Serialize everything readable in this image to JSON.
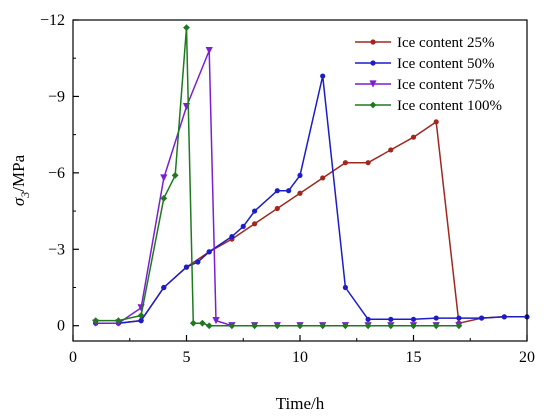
{
  "chart_data": {
    "type": "line",
    "xlabel": "Time/h",
    "ylabel": {
      "symbol": "σ",
      "subscript": "3",
      "unit": "/MPa"
    },
    "xlim": [
      0,
      20
    ],
    "ylim": [
      0.6,
      -12
    ],
    "y_axis_inverted": true,
    "xticks": [
      0,
      5,
      10,
      15,
      20
    ],
    "xtick_labels": [
      "0",
      "5",
      "10",
      "15",
      "20"
    ],
    "yticks": [
      0,
      -3,
      -6,
      -9,
      -12
    ],
    "ytick_labels": [
      "0",
      "−3",
      "−6",
      "−9",
      "−12"
    ],
    "grid": false,
    "legend_position": "top-right",
    "series": [
      {
        "name": "Ice content 25%",
        "color": "#a0281e",
        "marker": "circle",
        "x": [
          1,
          2,
          3,
          4,
          5,
          6,
          7,
          8,
          9,
          10,
          11,
          12,
          13,
          14,
          15,
          16,
          17,
          18,
          19,
          20
        ],
        "y": [
          -0.1,
          -0.1,
          -0.2,
          -1.5,
          -2.3,
          -2.9,
          -3.4,
          -4.0,
          -4.6,
          -5.2,
          -5.8,
          -6.4,
          -6.4,
          -6.9,
          -7.4,
          -8.0,
          -0.1,
          -0.3,
          -0.35,
          -0.35
        ]
      },
      {
        "name": "Ice content 50%",
        "color": "#1c1cc8",
        "marker": "circle",
        "x": [
          1,
          2,
          3,
          4,
          5,
          5.5,
          6,
          7,
          7.5,
          8,
          9,
          9.5,
          10,
          11,
          12,
          13,
          14,
          15,
          16,
          17,
          18,
          19,
          20
        ],
        "y": [
          -0.1,
          -0.1,
          -0.2,
          -1.5,
          -2.3,
          -2.5,
          -2.9,
          -3.5,
          -3.9,
          -4.5,
          -5.3,
          -5.3,
          -5.9,
          -9.8,
          -1.5,
          -0.25,
          -0.25,
          -0.25,
          -0.3,
          -0.3,
          -0.3,
          -0.35,
          -0.35
        ]
      },
      {
        "name": "Ice content 75%",
        "color": "#7b1fd0",
        "marker": "triangle-down",
        "x": [
          1,
          2,
          3,
          4,
          5,
          6,
          6.3,
          7,
          8,
          9,
          10,
          11,
          12,
          13,
          14,
          15,
          16,
          17
        ],
        "y": [
          -0.1,
          -0.1,
          -0.7,
          -5.8,
          -8.6,
          -10.8,
          -0.2,
          0,
          0,
          0,
          0,
          0,
          0,
          0,
          0,
          0,
          0,
          0
        ]
      },
      {
        "name": "Ice content 100%",
        "color": "#1e7a1e",
        "marker": "diamond",
        "x": [
          1,
          2,
          3,
          4,
          4.5,
          5,
          5.3,
          5.7,
          6,
          7,
          8,
          9,
          10,
          11,
          12,
          13,
          14,
          15,
          16,
          17
        ],
        "y": [
          -0.2,
          -0.2,
          -0.4,
          -5.0,
          -5.9,
          -11.7,
          -0.1,
          -0.1,
          0,
          0,
          0,
          0,
          0,
          0,
          0,
          0,
          0,
          0,
          0,
          0
        ]
      }
    ]
  }
}
